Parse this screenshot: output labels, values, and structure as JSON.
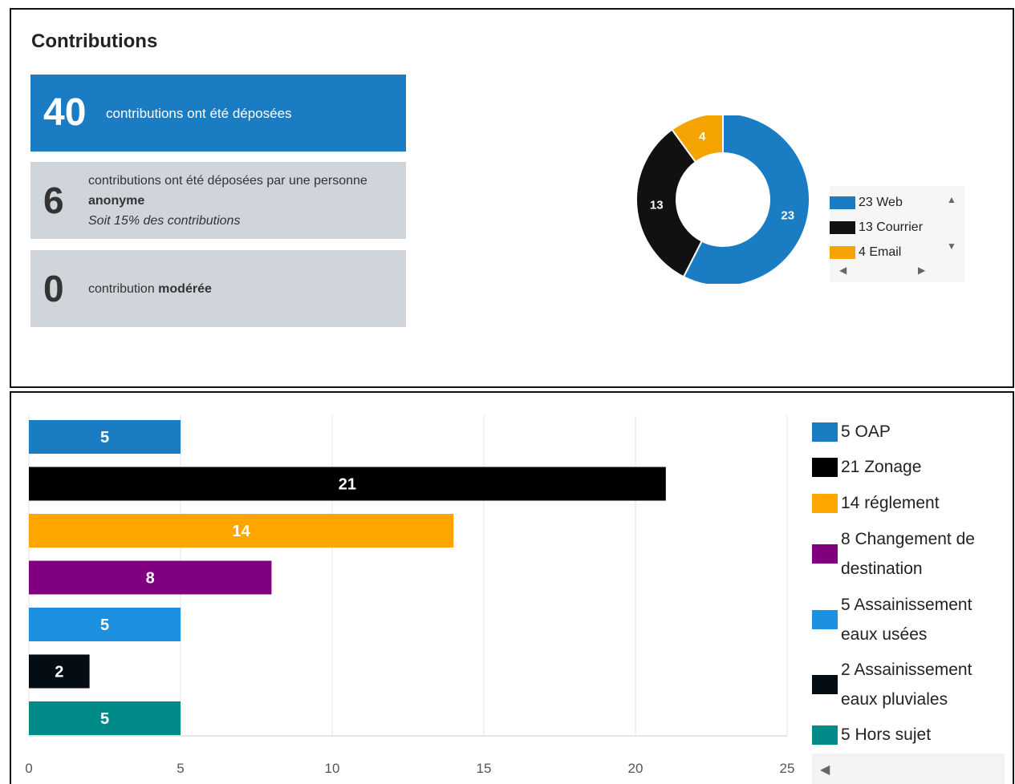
{
  "header": {
    "title": "Contributions"
  },
  "cards": {
    "total": {
      "value": "40",
      "label": "contributions ont été déposées"
    },
    "anonymous": {
      "value": "6",
      "label_prefix": "contributions ont été déposées par une personne",
      "label_bold": "anonyme",
      "note": "Soit 15% des contributions"
    },
    "moderated": {
      "value": "0",
      "label_prefix": "contribution",
      "label_bold": "modérée"
    }
  },
  "chart_data": [
    {
      "type": "pie",
      "variant": "donut",
      "categories": [
        "Web",
        "Courrier",
        "Email"
      ],
      "values": [
        23,
        13,
        4
      ],
      "colors": [
        "#1a7dc4",
        "#111111",
        "#f5a300"
      ],
      "legend": [
        "23 Web",
        "13 Courrier",
        "4 Email"
      ],
      "legend_position": "right"
    },
    {
      "type": "bar",
      "orientation": "horizontal",
      "categories": [
        "OAP",
        "Zonage",
        "réglement",
        "Changement de destination",
        "Assainissement eaux usées",
        "Assainissement eaux pluviales",
        "Hors sujet"
      ],
      "values": [
        5,
        21,
        14,
        8,
        5,
        2,
        5
      ],
      "colors": [
        "#1a7dc4",
        "#000000",
        "#ffa500",
        "#800080",
        "#1e90e0",
        "#050d14",
        "#008b8b"
      ],
      "legend": [
        "5 OAP",
        "21 Zonage",
        "14 réglement",
        "8 Changement de destination",
        "5 Assainissement eaux usées",
        "2 Assainissement eaux pluviales",
        "5 Hors sujet"
      ],
      "xlim": [
        0,
        25
      ],
      "xticks": [
        0,
        5,
        10,
        15,
        20,
        25
      ],
      "grid": true,
      "legend_position": "right"
    }
  ]
}
